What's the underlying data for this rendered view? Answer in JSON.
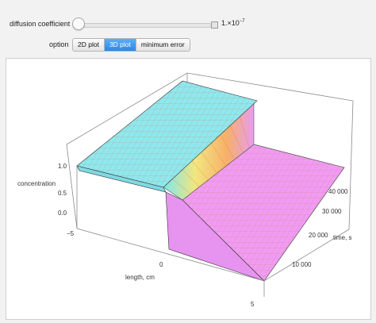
{
  "controls": {
    "slider_label": "diffusion coefficient",
    "slider_value_base": "1.×10",
    "slider_value_exp": "−7",
    "option_label": "option",
    "options": [
      "2D plot",
      "3D plot",
      "minimum error"
    ],
    "selected_option": "3D plot"
  },
  "plot": {
    "z_label": "concentration",
    "x_label": "length, cm",
    "y_label": "time, s",
    "z_ticks": [
      "1.0",
      "0.5",
      "0.0",
      "−5"
    ],
    "x_ticks": [
      "0",
      "5"
    ],
    "y_ticks": [
      "40 000",
      "30 000",
      "20 000",
      "10 000"
    ],
    "colors": {
      "high_surface": "#8ee8f0",
      "low_surface": "#f09cf5",
      "mesh": "#d9772c"
    }
  }
}
